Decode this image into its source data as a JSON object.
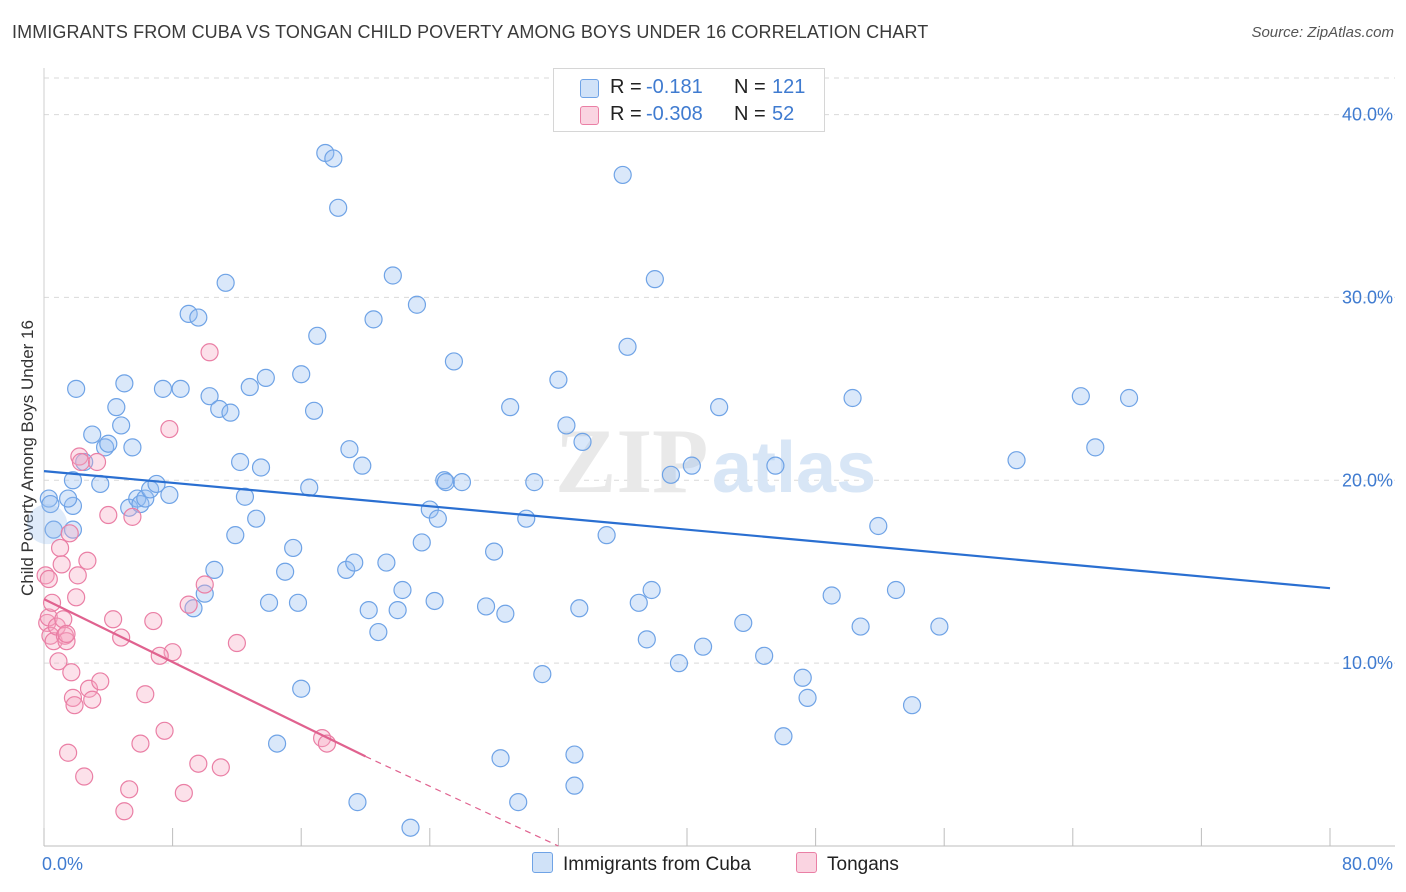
{
  "title": "IMMIGRANTS FROM CUBA VS TONGAN CHILD POVERTY AMONG BOYS UNDER 16 CORRELATION CHART",
  "source": "Source: ZipAtlas.com",
  "watermark": {
    "zip": "ZIP",
    "atlas": "atlas"
  },
  "colors": {
    "blue": "#6fa3e6",
    "blue_fill": "rgba(150,190,240,0.35)",
    "blue_line": "#2a6fd1",
    "pink": "#ea7fa5",
    "pink_fill": "rgba(245,170,195,0.35)",
    "pink_line": "#e0628f",
    "tick": "#3f7bd0",
    "grid": "#d9d9d9"
  },
  "legend": {
    "rows": [
      {
        "r_label": "R =",
        "r_value": "-0.181",
        "n_label": "N =",
        "n_value": "121"
      },
      {
        "r_label": "R =",
        "r_value": "-0.308",
        "n_label": "N =",
        "n_value": "52"
      }
    ]
  },
  "bottom_legend": [
    "Immigrants from Cuba",
    "Tongans"
  ],
  "chart_data": {
    "type": "scatter",
    "title": "IMMIGRANTS FROM CUBA VS TONGAN CHILD POVERTY AMONG BOYS UNDER 16 CORRELATION CHART",
    "xlabel": "",
    "ylabel": "Child Poverty Among Boys Under 16",
    "xlim": [
      0,
      80
    ],
    "ylim": [
      0,
      42
    ],
    "x_tick_labels": [
      "0.0%",
      "80.0%"
    ],
    "y_ticks": [
      10,
      20,
      30,
      40
    ],
    "y_tick_labels": [
      "10.0%",
      "20.0%",
      "30.0%",
      "40.0%"
    ],
    "series": [
      {
        "name": "Immigrants from Cuba",
        "trend": {
          "x0": 0,
          "y0": 20.5,
          "x1": 80,
          "y1": 14.1
        },
        "points": [
          [
            0.3,
            19.0
          ],
          [
            0.4,
            18.7
          ],
          [
            0.6,
            17.3
          ],
          [
            1.8,
            18.6
          ],
          [
            1.8,
            17.3
          ],
          [
            1.5,
            19.0
          ],
          [
            1.8,
            20.0
          ],
          [
            2.0,
            25.0
          ],
          [
            2.5,
            21.0
          ],
          [
            3.0,
            22.5
          ],
          [
            3.5,
            19.8
          ],
          [
            3.8,
            21.8
          ],
          [
            4.0,
            22.0
          ],
          [
            4.5,
            24.0
          ],
          [
            4.8,
            23.0
          ],
          [
            5.0,
            25.3
          ],
          [
            5.3,
            18.5
          ],
          [
            5.5,
            21.8
          ],
          [
            5.8,
            19.0
          ],
          [
            6.0,
            18.7
          ],
          [
            6.3,
            19.0
          ],
          [
            6.6,
            19.5
          ],
          [
            7.0,
            19.8
          ],
          [
            7.4,
            25.0
          ],
          [
            7.8,
            19.2
          ],
          [
            8.5,
            25.0
          ],
          [
            9.0,
            29.1
          ],
          [
            9.3,
            13.0
          ],
          [
            9.6,
            28.9
          ],
          [
            10.0,
            13.8
          ],
          [
            10.3,
            24.6
          ],
          [
            10.6,
            15.1
          ],
          [
            10.9,
            23.9
          ],
          [
            11.3,
            30.8
          ],
          [
            11.6,
            23.7
          ],
          [
            11.9,
            17.0
          ],
          [
            12.2,
            21.0
          ],
          [
            12.5,
            19.1
          ],
          [
            12.8,
            25.1
          ],
          [
            13.2,
            17.9
          ],
          [
            13.5,
            20.7
          ],
          [
            13.8,
            25.6
          ],
          [
            14.0,
            13.3
          ],
          [
            14.5,
            5.6
          ],
          [
            15.0,
            15.0
          ],
          [
            15.5,
            16.3
          ],
          [
            15.8,
            13.3
          ],
          [
            16.0,
            25.8
          ],
          [
            16.5,
            19.6
          ],
          [
            16.8,
            23.8
          ],
          [
            17.0,
            27.9
          ],
          [
            17.5,
            37.9
          ],
          [
            18.0,
            37.6
          ],
          [
            18.3,
            34.9
          ],
          [
            18.8,
            15.1
          ],
          [
            19.0,
            21.7
          ],
          [
            19.3,
            15.5
          ],
          [
            19.5,
            2.4
          ],
          [
            19.8,
            20.8
          ],
          [
            20.2,
            12.9
          ],
          [
            20.5,
            28.8
          ],
          [
            20.8,
            11.7
          ],
          [
            21.3,
            15.5
          ],
          [
            21.7,
            31.2
          ],
          [
            22.0,
            12.9
          ],
          [
            22.3,
            14.0
          ],
          [
            22.8,
            1.0
          ],
          [
            23.2,
            29.6
          ],
          [
            23.5,
            16.6
          ],
          [
            24.0,
            18.4
          ],
          [
            24.3,
            13.4
          ],
          [
            24.5,
            17.9
          ],
          [
            24.9,
            20.0
          ],
          [
            25.0,
            19.9
          ],
          [
            25.5,
            26.5
          ],
          [
            26.0,
            19.9
          ],
          [
            27.5,
            13.1
          ],
          [
            28.0,
            16.1
          ],
          [
            28.4,
            4.8
          ],
          [
            28.7,
            12.7
          ],
          [
            29.0,
            24.0
          ],
          [
            29.5,
            2.4
          ],
          [
            30.0,
            17.9
          ],
          [
            30.5,
            19.9
          ],
          [
            31.0,
            9.4
          ],
          [
            32.0,
            25.5
          ],
          [
            32.5,
            23.0
          ],
          [
            33.0,
            3.3
          ],
          [
            33.3,
            13.0
          ],
          [
            33.5,
            22.1
          ],
          [
            35.0,
            17.0
          ],
          [
            36.0,
            36.7
          ],
          [
            36.3,
            27.3
          ],
          [
            37.0,
            13.3
          ],
          [
            37.5,
            11.3
          ],
          [
            37.8,
            14.0
          ],
          [
            38.0,
            31.0
          ],
          [
            39.0,
            20.3
          ],
          [
            39.5,
            10.0
          ],
          [
            40.3,
            20.8
          ],
          [
            41.0,
            10.9
          ],
          [
            42.0,
            24.0
          ],
          [
            43.5,
            12.2
          ],
          [
            44.8,
            10.4
          ],
          [
            45.5,
            20.8
          ],
          [
            46.0,
            6.0
          ],
          [
            47.2,
            9.2
          ],
          [
            47.5,
            8.1
          ],
          [
            49.0,
            13.7
          ],
          [
            50.3,
            24.5
          ],
          [
            50.8,
            12.0
          ],
          [
            51.9,
            17.5
          ],
          [
            53.0,
            14.0
          ],
          [
            54.0,
            7.7
          ],
          [
            55.7,
            12.0
          ],
          [
            60.5,
            21.1
          ],
          [
            64.5,
            24.6
          ],
          [
            65.4,
            21.8
          ],
          [
            67.5,
            24.5
          ],
          [
            33.0,
            5.0
          ],
          [
            16.0,
            8.6
          ]
        ]
      },
      {
        "name": "Tongans",
        "trend": {
          "x0": 0,
          "y0": 13.5,
          "x1": 20,
          "y1": 4.9,
          "dashed_to_x": 32,
          "dashed_to_y": 0
        },
        "points": [
          [
            0.1,
            14.8
          ],
          [
            0.2,
            12.2
          ],
          [
            0.3,
            12.5
          ],
          [
            0.4,
            11.5
          ],
          [
            0.5,
            13.3
          ],
          [
            0.6,
            11.2
          ],
          [
            0.8,
            12.0
          ],
          [
            0.9,
            10.1
          ],
          [
            1.0,
            16.3
          ],
          [
            1.1,
            15.4
          ],
          [
            1.2,
            12.4
          ],
          [
            1.3,
            11.5
          ],
          [
            1.4,
            11.2
          ],
          [
            1.5,
            5.1
          ],
          [
            1.6,
            17.1
          ],
          [
            1.7,
            9.5
          ],
          [
            1.8,
            8.1
          ],
          [
            1.9,
            7.7
          ],
          [
            2.0,
            13.6
          ],
          [
            2.1,
            14.8
          ],
          [
            2.2,
            21.3
          ],
          [
            2.3,
            21.0
          ],
          [
            2.5,
            3.8
          ],
          [
            2.7,
            15.6
          ],
          [
            2.8,
            8.6
          ],
          [
            3.0,
            8.0
          ],
          [
            3.3,
            21.0
          ],
          [
            3.5,
            9.0
          ],
          [
            4.0,
            18.1
          ],
          [
            4.3,
            12.4
          ],
          [
            4.8,
            11.4
          ],
          [
            5.0,
            1.9
          ],
          [
            5.3,
            3.1
          ],
          [
            5.5,
            18.0
          ],
          [
            6.0,
            5.6
          ],
          [
            6.3,
            8.3
          ],
          [
            6.8,
            12.3
          ],
          [
            7.5,
            6.3
          ],
          [
            7.8,
            22.8
          ],
          [
            8.0,
            10.6
          ],
          [
            8.7,
            2.9
          ],
          [
            9.0,
            13.2
          ],
          [
            9.6,
            4.5
          ],
          [
            10.0,
            14.3
          ],
          [
            10.3,
            27.0
          ],
          [
            11.0,
            4.3
          ],
          [
            12.0,
            11.1
          ],
          [
            17.3,
            5.9
          ],
          [
            17.6,
            5.6
          ],
          [
            7.2,
            10.4
          ],
          [
            0.3,
            14.6
          ],
          [
            1.4,
            11.6
          ]
        ]
      }
    ]
  }
}
